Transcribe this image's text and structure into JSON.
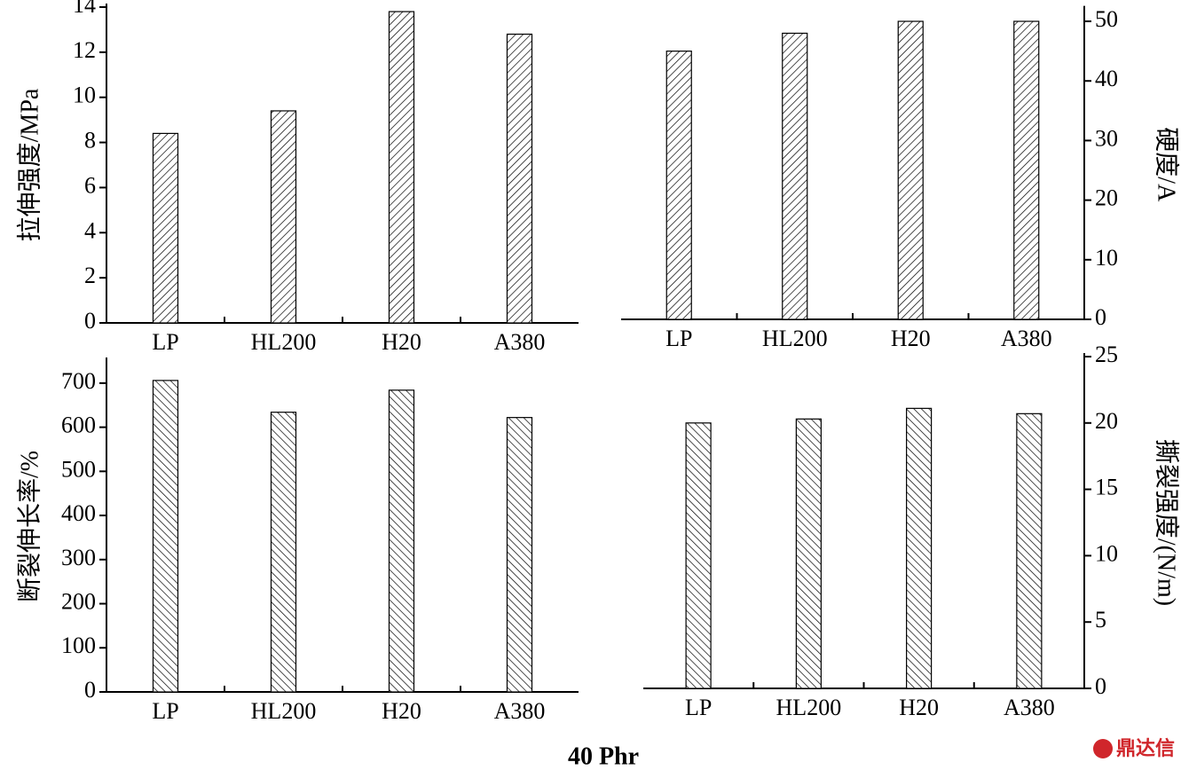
{
  "chart_data": [
    {
      "type": "bar",
      "ylabel": "拉伸强度/MPa",
      "axis_side": "left",
      "hatch": "forward",
      "color": "#000000",
      "categories": [
        "LP",
        "HL200",
        "H20",
        "A380"
      ],
      "values": [
        8.4,
        9.4,
        13.8,
        12.8
      ],
      "ylim": [
        0,
        14
      ],
      "yticks": [
        0,
        2,
        4,
        6,
        8,
        10,
        12,
        14
      ]
    },
    {
      "type": "bar",
      "ylabel": "硬度/A",
      "axis_side": "right",
      "hatch": "forward",
      "color": "#000000",
      "categories": [
        "LP",
        "HL200",
        "H20",
        "A380"
      ],
      "values": [
        45,
        48,
        50,
        50
      ],
      "ylim": [
        0,
        52
      ],
      "yticks": [
        0,
        10,
        20,
        30,
        40,
        50
      ]
    },
    {
      "type": "bar",
      "ylabel": "断裂伸长率/%",
      "axis_side": "left",
      "hatch": "back",
      "color": "#000000",
      "categories": [
        "LP",
        "HL200",
        "H20",
        "A380"
      ],
      "values": [
        706,
        634,
        684,
        622
      ],
      "ylim": [
        0,
        750
      ],
      "yticks": [
        0,
        100,
        200,
        300,
        400,
        500,
        600,
        700
      ]
    },
    {
      "type": "bar",
      "ylabel": "撕裂强度/(N/m)",
      "axis_side": "right",
      "hatch": "back",
      "color": "#000000",
      "categories": [
        "LP",
        "HL200",
        "H20",
        "A380"
      ],
      "values": [
        20.0,
        20.3,
        21.1,
        20.7
      ],
      "ylim": [
        0,
        25
      ],
      "yticks": [
        0,
        5,
        10,
        15,
        20,
        25
      ]
    }
  ],
  "xlabel": "40  Phr",
  "watermark": "鼎达信"
}
